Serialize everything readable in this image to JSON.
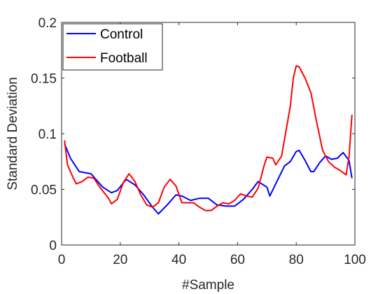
{
  "chart_data": {
    "type": "line",
    "title": "",
    "xlabel": "#Sample",
    "ylabel": "Standard Deviation",
    "xlim": [
      0,
      100
    ],
    "ylim": [
      0,
      0.2
    ],
    "x_ticks": [
      0,
      20,
      40,
      60,
      80,
      100
    ],
    "x_tick_labels": [
      "0",
      "20",
      "40",
      "60",
      "80",
      "100"
    ],
    "y_ticks": [
      0,
      0.05,
      0.1,
      0.15,
      0.2
    ],
    "y_tick_labels": [
      "0",
      "0.05",
      "0.1",
      "0.15",
      "0.2"
    ],
    "grid": false,
    "legend_position": "top-left",
    "series": [
      {
        "name": "Control",
        "color": "#0000ff",
        "x": [
          1,
          3,
          6,
          10,
          14,
          17,
          19,
          22,
          25,
          28,
          31,
          33,
          36,
          39,
          41,
          44,
          47,
          50,
          53,
          56,
          59,
          62,
          65,
          67,
          70,
          71,
          73,
          76,
          78,
          80,
          81,
          83,
          85,
          86,
          88,
          90,
          92,
          94,
          96,
          98,
          99
        ],
        "y": [
          0.091,
          0.078,
          0.066,
          0.064,
          0.052,
          0.047,
          0.049,
          0.059,
          0.054,
          0.045,
          0.034,
          0.028,
          0.036,
          0.045,
          0.044,
          0.04,
          0.042,
          0.042,
          0.036,
          0.035,
          0.035,
          0.041,
          0.05,
          0.057,
          0.052,
          0.044,
          0.055,
          0.071,
          0.075,
          0.084,
          0.085,
          0.076,
          0.066,
          0.066,
          0.074,
          0.08,
          0.077,
          0.078,
          0.083,
          0.076,
          0.06
        ]
      },
      {
        "name": "Football",
        "color": "#ff0000",
        "x": [
          1,
          2,
          4,
          5,
          7,
          9,
          11,
          13,
          16,
          17,
          19,
          21,
          23,
          25,
          27,
          29,
          31,
          33,
          35,
          37,
          39,
          41,
          43,
          45,
          47,
          49,
          51,
          53,
          55,
          57,
          59,
          61,
          63,
          65,
          67,
          69,
          70,
          72,
          73,
          75,
          78,
          79,
          80,
          81,
          83,
          85,
          87,
          89,
          91,
          93,
          95,
          97,
          98,
          99
        ],
        "y": [
          0.094,
          0.072,
          0.06,
          0.055,
          0.057,
          0.061,
          0.06,
          0.052,
          0.042,
          0.037,
          0.041,
          0.056,
          0.064,
          0.057,
          0.045,
          0.036,
          0.034,
          0.038,
          0.052,
          0.059,
          0.053,
          0.038,
          0.038,
          0.038,
          0.034,
          0.031,
          0.031,
          0.035,
          0.038,
          0.037,
          0.04,
          0.046,
          0.044,
          0.043,
          0.051,
          0.071,
          0.079,
          0.078,
          0.072,
          0.08,
          0.125,
          0.15,
          0.161,
          0.16,
          0.15,
          0.137,
          0.11,
          0.085,
          0.075,
          0.07,
          0.067,
          0.063,
          0.079,
          0.117
        ]
      }
    ]
  }
}
